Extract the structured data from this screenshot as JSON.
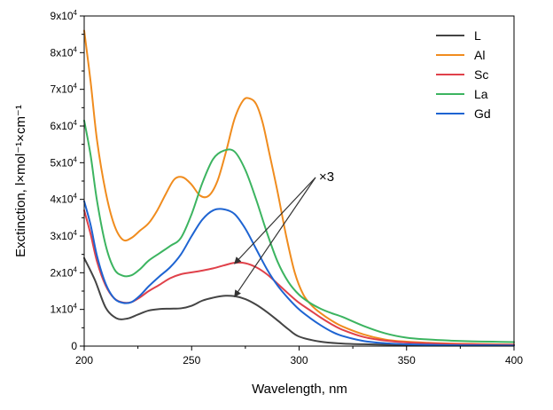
{
  "chart_data": {
    "type": "line",
    "xlabel": "Wavelength, nm",
    "ylabel": "Exctinction, l×mol⁻¹×cm⁻¹",
    "xlim": [
      200,
      400
    ],
    "ylim": [
      0,
      90000
    ],
    "x_ticks": [
      200,
      250,
      300,
      350,
      400
    ],
    "y_ticks": [
      {
        "value": 0,
        "label": "0"
      },
      {
        "value": 10000,
        "label": "1x10",
        "exp": "4"
      },
      {
        "value": 20000,
        "label": "2x10",
        "exp": "4"
      },
      {
        "value": 30000,
        "label": "3x10",
        "exp": "4"
      },
      {
        "value": 40000,
        "label": "4x10",
        "exp": "4"
      },
      {
        "value": 50000,
        "label": "5x10",
        "exp": "4"
      },
      {
        "value": 60000,
        "label": "6x10",
        "exp": "4"
      },
      {
        "value": 70000,
        "label": "7x10",
        "exp": "4"
      },
      {
        "value": 80000,
        "label": "8x10",
        "exp": "4"
      },
      {
        "value": 90000,
        "label": "9x10",
        "exp": "4"
      }
    ],
    "legend_position": "top-right",
    "grid": false,
    "annotation": {
      "text": "×3",
      "arrow_targets": [
        [
          270,
          22500
        ],
        [
          270,
          13500
        ]
      ]
    },
    "series": [
      {
        "name": "L",
        "color": "#444444",
        "x": [
          200,
          205,
          210,
          215,
          220,
          225,
          230,
          235,
          240,
          245,
          250,
          255,
          260,
          265,
          270,
          275,
          280,
          285,
          290,
          295,
          300,
          310,
          320,
          330,
          340,
          350,
          360,
          370,
          380,
          390,
          400
        ],
        "y": [
          24000,
          18000,
          10500,
          7600,
          7500,
          8600,
          9700,
          10100,
          10200,
          10300,
          11000,
          12400,
          13200,
          13700,
          13600,
          12800,
          11300,
          9300,
          7000,
          4600,
          2600,
          1200,
          700,
          500,
          400,
          300,
          250,
          200,
          200,
          150,
          150
        ]
      },
      {
        "name": "Al",
        "color": "#f08c1e",
        "x": [
          200,
          203,
          206,
          210,
          214,
          218,
          222,
          226,
          230,
          234,
          238,
          242,
          246,
          250,
          254,
          258,
          262,
          266,
          270,
          274,
          277,
          280,
          283,
          286,
          290,
          294,
          298,
          302,
          306,
          310,
          315,
          320,
          330,
          340,
          350,
          360,
          370,
          380,
          390,
          400
        ],
        "y": [
          86000,
          72000,
          56000,
          42000,
          33000,
          29000,
          29500,
          31500,
          33500,
          37000,
          41500,
          45500,
          46000,
          44000,
          41000,
          41000,
          45000,
          53000,
          62000,
          67000,
          67500,
          66000,
          61000,
          53000,
          42000,
          30000,
          20000,
          14000,
          11000,
          9000,
          7000,
          5400,
          3200,
          1800,
          1200,
          900,
          700,
          600,
          500,
          400
        ]
      },
      {
        "name": "Sc",
        "color": "#e0414a",
        "x": [
          200,
          203,
          206,
          210,
          214,
          218,
          222,
          226,
          230,
          235,
          240,
          245,
          250,
          255,
          260,
          265,
          270,
          275,
          280,
          285,
          290,
          295,
          300,
          305,
          310,
          315,
          320,
          330,
          340,
          350,
          360,
          370,
          380,
          390,
          400
        ],
        "y": [
          37000,
          30500,
          23000,
          16500,
          13000,
          11900,
          12000,
          13300,
          15000,
          16700,
          18500,
          19600,
          20100,
          20600,
          21200,
          22000,
          22700,
          22600,
          21500,
          19600,
          17000,
          14300,
          11800,
          9800,
          7800,
          6000,
          4500,
          2500,
          1500,
          1000,
          800,
          600,
          500,
          400,
          400
        ]
      },
      {
        "name": "La",
        "color": "#3cb460",
        "x": [
          200,
          203,
          206,
          210,
          214,
          218,
          222,
          226,
          230,
          235,
          240,
          245,
          250,
          255,
          260,
          265,
          270,
          275,
          280,
          285,
          290,
          295,
          300,
          305,
          310,
          315,
          320,
          330,
          340,
          350,
          360,
          370,
          380,
          390,
          400
        ],
        "y": [
          61500,
          52000,
          39500,
          27500,
          21000,
          19200,
          19300,
          21000,
          23300,
          25300,
          27300,
          29500,
          36000,
          44500,
          51000,
          53300,
          53000,
          48000,
          40000,
          31000,
          23000,
          17500,
          14000,
          11800,
          10200,
          9000,
          8000,
          5500,
          3500,
          2300,
          1800,
          1500,
          1300,
          1200,
          1100
        ]
      },
      {
        "name": "Gd",
        "color": "#1e64d2",
        "x": [
          200,
          203,
          206,
          210,
          214,
          218,
          222,
          226,
          230,
          235,
          240,
          245,
          250,
          255,
          260,
          265,
          270,
          275,
          280,
          285,
          290,
          295,
          300,
          305,
          310,
          315,
          320,
          330,
          340,
          350,
          360,
          370,
          380,
          390,
          400
        ],
        "y": [
          39500,
          33000,
          24500,
          17000,
          13000,
          11800,
          12000,
          13800,
          16300,
          19000,
          21500,
          25000,
          30000,
          34500,
          37000,
          37300,
          36000,
          32000,
          26500,
          21000,
          16500,
          13000,
          10000,
          7700,
          5700,
          4000,
          2800,
          1400,
          800,
          500,
          350,
          250,
          200,
          200,
          150
        ]
      }
    ]
  }
}
